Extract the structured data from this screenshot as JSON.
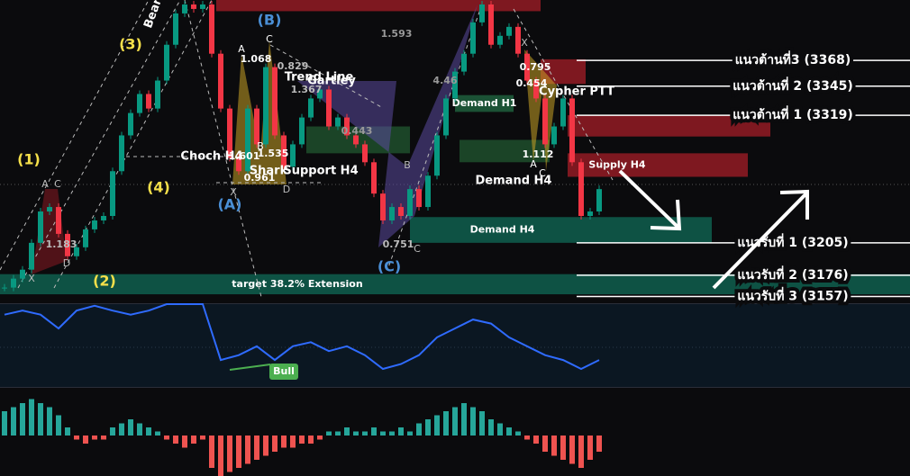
{
  "chart_data": {
    "type": "candlestick",
    "ylim": [
      3151,
      3422
    ],
    "closes": [
      3165,
      3173,
      3181,
      3205,
      3233,
      3237,
      3213,
      3193,
      3201,
      3217,
      3225,
      3229,
      3269,
      3301,
      3321,
      3338,
      3325,
      3350,
      3382,
      3410,
      3418,
      3414,
      3418,
      3374,
      3325,
      3281,
      3269,
      3325,
      3293,
      3362,
      3301,
      3273,
      3293,
      3317,
      3334,
      3342,
      3309,
      3317,
      3301,
      3293,
      3277,
      3249,
      3225,
      3237,
      3229,
      3253,
      3237,
      3265,
      3301,
      3334,
      3358,
      3374,
      3402,
      3418,
      3382,
      3390,
      3398,
      3374,
      3350,
      3334,
      3293,
      3309,
      3334,
      3277,
      3229,
      3233,
      3253
    ],
    "up_color": "#089981",
    "down_color": "#f23645",
    "levels": [
      {
        "label": "แนวต้านที่3 (3368)",
        "value": 3368
      },
      {
        "label": "แนวต้านที่ 2 (3345)",
        "value": 3345
      },
      {
        "label": "แนวต้านที่ 1 (3319)",
        "value": 3319
      },
      {
        "label": "แนวรับที่ 1 (3205)",
        "value": 3205
      },
      {
        "label": "แนวรับที่ 2 (3176)",
        "value": 3176
      },
      {
        "label": "แนวรับที่ 3 (3157)",
        "value": 3157
      }
    ],
    "zones": [
      {
        "range": [
          3412,
          3422
        ],
        "span": [
          23.5,
          59.5
        ],
        "color": "#8b1a22"
      },
      {
        "range": [
          3347,
          3369
        ],
        "span": [
          59.5,
          64.5
        ],
        "color": "#8b1a22"
      },
      {
        "range": [
          3300,
          3319
        ],
        "span": [
          62.5,
          85
        ],
        "color": "#8b1a22"
      },
      {
        "range": [
          3264,
          3285
        ],
        "span": [
          62.5,
          82.5
        ],
        "color": "#8b1a22",
        "label": "Supply H4"
      },
      {
        "range": [
          3322,
          3337
        ],
        "span": [
          50,
          56.5
        ],
        "color": "#1d5a3a",
        "label": "Demand H1"
      },
      {
        "range": [
          3277,
          3297
        ],
        "span": [
          50.5,
          60.5
        ],
        "color": "#1d4a2a"
      },
      {
        "range": [
          3285,
          3309
        ],
        "span": [
          33.5,
          45
        ],
        "color": "#1d4a2a"
      },
      {
        "range": [
          3205,
          3228
        ],
        "span": [
          45,
          78.5
        ],
        "color": "#0e5a4a",
        "label": "Demand H4"
      },
      {
        "range": [
          3159,
          3177
        ],
        "span": [
          -0.5,
          100.5
        ],
        "color": "#0e5a4a",
        "label": "target 38.2% Extension"
      }
    ],
    "oscillator": {
      "color": "#2f6bff",
      "ylim": [
        0,
        100
      ],
      "values": [
        87,
        92,
        87,
        70,
        92,
        98,
        92,
        87,
        92,
        100,
        100,
        100,
        31,
        37,
        48,
        31,
        48,
        53,
        42,
        48,
        37,
        20,
        26,
        37,
        59,
        70,
        81,
        76,
        59,
        48,
        37,
        31,
        20,
        31
      ]
    },
    "histogram": {
      "pos_color": "#26a69a",
      "neg_color": "#ef5350",
      "ylim": [
        -10,
        10
      ],
      "values": [
        6,
        7,
        8,
        9,
        8,
        7,
        5,
        2,
        -1,
        -2,
        -1,
        -1,
        2,
        3,
        4,
        3,
        2,
        1,
        -1,
        -2,
        -3,
        -2,
        -1,
        -8,
        -10,
        -9,
        -8,
        -7,
        -6,
        -5,
        -4,
        -3,
        -3,
        -2,
        -2,
        -1,
        1,
        1,
        2,
        1,
        1,
        2,
        1,
        1,
        2,
        1,
        3,
        4,
        5,
        6,
        7,
        8,
        7,
        6,
        4,
        3,
        2,
        1,
        -1,
        -2,
        -4,
        -5,
        -6,
        -7,
        -8,
        -6,
        -4
      ]
    },
    "bull_label": "Bull",
    "annotations": [
      {
        "text": "(1)",
        "color": "#f5e04a"
      },
      {
        "text": "(2)",
        "color": "#f5e04a"
      },
      {
        "text": "(3)",
        "color": "#f5e04a"
      },
      {
        "text": "(4)",
        "color": "#f5e04a"
      },
      {
        "text": "(A)",
        "color": "#4a8fd6"
      },
      {
        "text": "(B)",
        "color": "#4a8fd6"
      },
      {
        "text": "(C)",
        "color": "#4a8fd6"
      },
      {
        "text": "Choch H4",
        "color": "#ffffff"
      },
      {
        "text": "Shark",
        "color": "#ffffff"
      },
      {
        "text": "Support H4",
        "color": "#ffffff"
      },
      {
        "text": "Trend Line",
        "color": "#ffffff"
      },
      {
        "text": "Gartley",
        "color": "#ffffff"
      },
      {
        "text": "Demand H4",
        "color": "#ffffff"
      },
      {
        "text": "Cypher PTT",
        "color": "#ffffff"
      },
      {
        "text": "Bear",
        "color": "#ffffff"
      },
      {
        "text": "1.068",
        "color": "#ffffff"
      },
      {
        "text": "1.535",
        "color": "#ffffff"
      },
      {
        "text": "1.601",
        "color": "#ffffff"
      },
      {
        "text": "0.961",
        "color": "#ffffff"
      },
      {
        "text": "0.829",
        "color": "#bbbbbb"
      },
      {
        "text": "1.367",
        "color": "#bbbbbb"
      },
      {
        "text": "0.443",
        "color": "#999999"
      },
      {
        "text": "1.593",
        "color": "#999999"
      },
      {
        "text": "4.46",
        "color": "#999999"
      },
      {
        "text": "0.751",
        "color": "#bbbbbb"
      },
      {
        "text": "0.795",
        "color": "#ffffff"
      },
      {
        "text": "0.454",
        "color": "#ffffff"
      },
      {
        "text": "1.112",
        "color": "#ffffff"
      },
      {
        "text": "1.183",
        "color": "#bbbbbb"
      },
      {
        "text": "X",
        "color": "#bbbbbb"
      },
      {
        "text": "A",
        "color": "#ffffff"
      },
      {
        "text": "B",
        "color": "#ffffff"
      },
      {
        "text": "C",
        "color": "#ffffff"
      },
      {
        "text": "D",
        "color": "#bbbbbb"
      },
      {
        "text": "X",
        "color": "#bbbbbb"
      },
      {
        "text": "A",
        "color": "#bbbbbb"
      },
      {
        "text": "C",
        "color": "#bbbbbb"
      },
      {
        "text": "D",
        "color": "#bbbbbb"
      },
      {
        "text": "A",
        "color": "#ffffff"
      },
      {
        "text": "C",
        "color": "#ffffff"
      },
      {
        "text": "B",
        "color": "#bbbbbb"
      },
      {
        "text": "C",
        "color": "#bbbbbb"
      },
      {
        "text": "X",
        "color": "#bbbbbb"
      }
    ]
  }
}
